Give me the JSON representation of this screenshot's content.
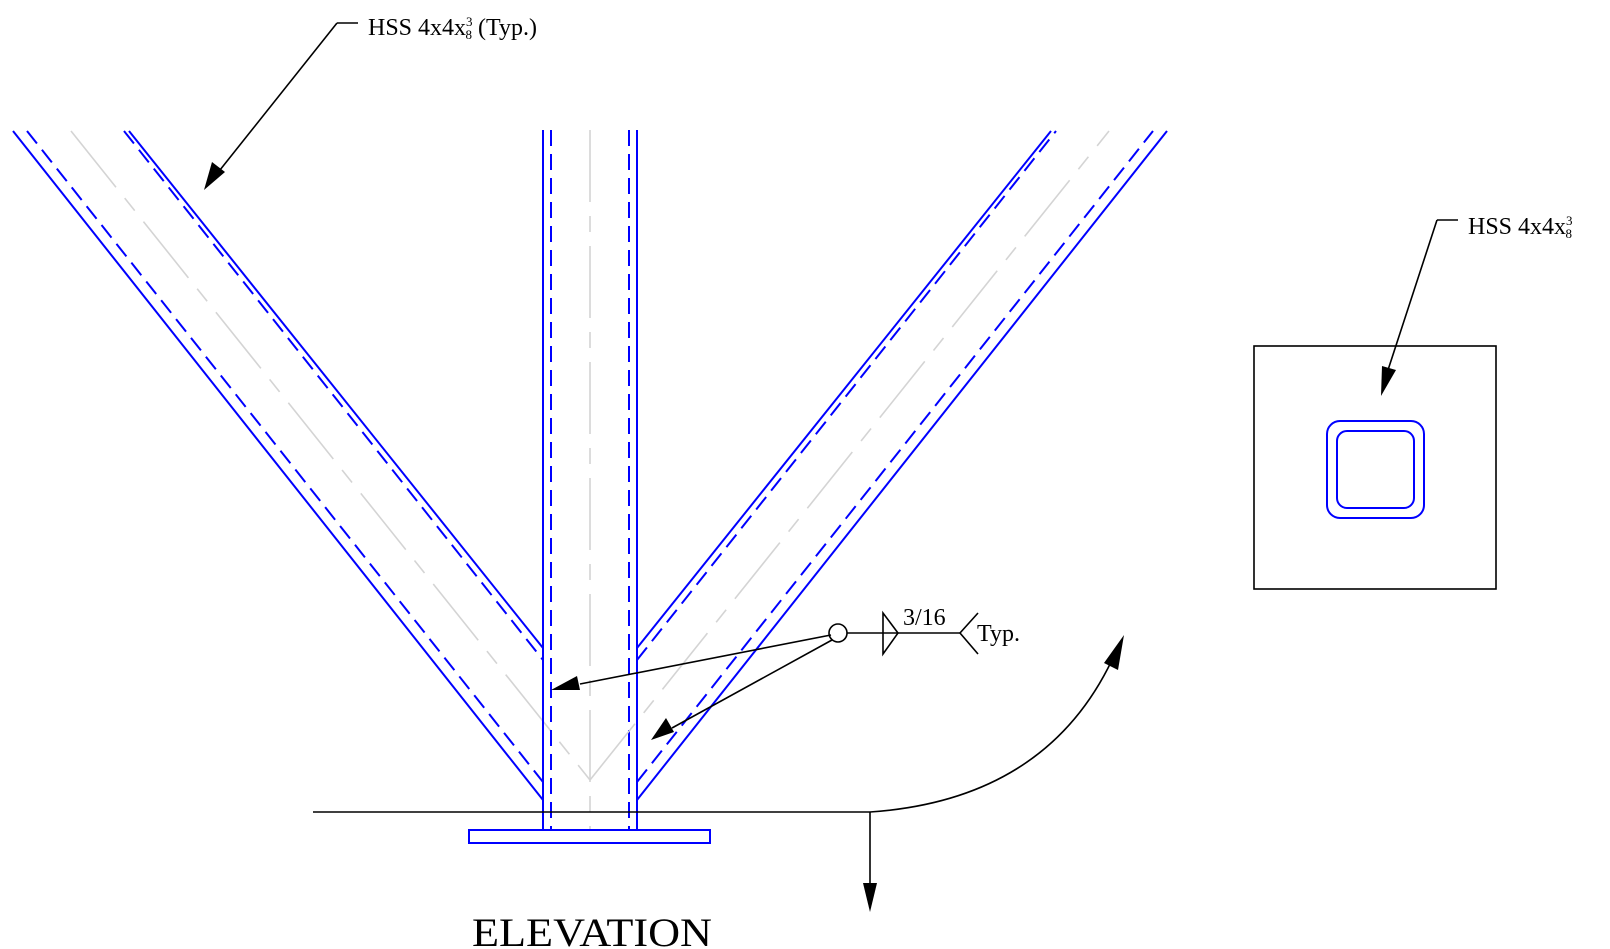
{
  "notes": {
    "member_callout": {
      "prefix": "HSS 4x4x",
      "num": "3",
      "den": "8",
      "suffix": " (Typ.)"
    },
    "section_callout": {
      "prefix": "HSS 4x4x",
      "num": "3",
      "den": "8"
    },
    "weld_size": "3/16",
    "weld_tail": "Typ."
  },
  "title": "ELEVATION",
  "colors": {
    "steel": "#0000ff",
    "centerline": "#d4d4d4",
    "ink": "#000000"
  }
}
